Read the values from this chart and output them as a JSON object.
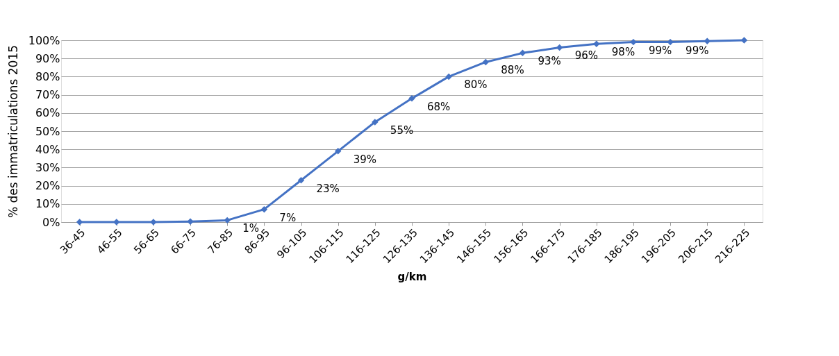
{
  "chart_data": {
    "type": "line",
    "xlabel": "g/km",
    "ylabel": "% des immatriculations 2015",
    "categories": [
      "36-45",
      "46-55",
      "56-65",
      "66-75",
      "76-85",
      "86-95",
      "96-105",
      "106-115",
      "116-125",
      "126-135",
      "136-145",
      "146-155",
      "156-165",
      "166-175",
      "176-185",
      "186-195",
      "196-205",
      "206-215",
      "216-225"
    ],
    "series": [
      {
        "color": "#4472c4",
        "values": [
          0,
          0,
          0,
          0.3,
          1,
          7,
          23,
          39,
          55,
          68,
          80,
          88,
          93,
          96,
          98,
          99,
          99,
          99.5,
          100
        ],
        "value_labels": [
          null,
          null,
          null,
          null,
          "1%",
          "7%",
          "23%",
          "39%",
          "55%",
          "68%",
          "80%",
          "88%",
          "93%",
          "96%",
          "98%",
          "99%",
          "99%",
          null,
          null
        ]
      }
    ],
    "ylim": [
      0,
      100
    ],
    "yticks": [
      {
        "value": 0,
        "label": "0%"
      },
      {
        "value": 10,
        "label": "10%"
      },
      {
        "value": 20,
        "label": "20%"
      },
      {
        "value": 30,
        "label": "30%"
      },
      {
        "value": 40,
        "label": "40%"
      },
      {
        "value": 50,
        "label": "50%"
      },
      {
        "value": 60,
        "label": "60%"
      },
      {
        "value": 70,
        "label": "70%"
      },
      {
        "value": 80,
        "label": "80%"
      },
      {
        "value": 90,
        "label": "90%"
      },
      {
        "value": 100,
        "label": "100%"
      }
    ],
    "grid": "y",
    "marker": "diamond",
    "line_style": "solid"
  }
}
